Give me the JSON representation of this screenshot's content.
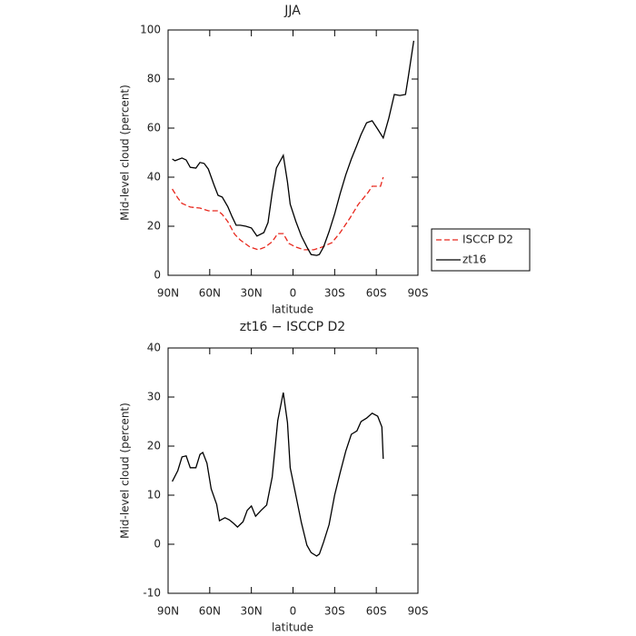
{
  "chart_data": [
    {
      "type": "line",
      "title": "JJA",
      "ylabel": "Mid-level cloud (percent)",
      "xlabel": "latitude",
      "xlim": [
        90,
        -90
      ],
      "ylim": [
        0,
        100
      ],
      "xticks": [
        {
          "value": 90,
          "label": "90N"
        },
        {
          "value": 60,
          "label": "60N"
        },
        {
          "value": 30,
          "label": "30N"
        },
        0,
        {
          "value": -30,
          "label": "30S"
        },
        {
          "value": -60,
          "label": "60S"
        },
        {
          "value": -90,
          "label": "90S"
        }
      ],
      "yticks": [
        0,
        20,
        40,
        60,
        80,
        100
      ],
      "legend": "right",
      "series": [
        {
          "name": "ISCCP D2",
          "color": "#e8271c",
          "linestyle": "dashed",
          "x": [
            87,
            83,
            80,
            74,
            67,
            61,
            54,
            51,
            47,
            42,
            38,
            31,
            25,
            20,
            15,
            11,
            7,
            3,
            -2,
            -8,
            -15,
            -21,
            -28,
            -34,
            -41,
            -47,
            -54,
            -57,
            -63,
            -65
          ],
          "values": [
            35.2,
            31.5,
            29.3,
            27.8,
            27.4,
            26.3,
            26.3,
            24.8,
            21.9,
            16.7,
            14.4,
            11.5,
            10.4,
            11.5,
            13.7,
            17,
            17,
            13,
            11.5,
            10.4,
            10.4,
            11.5,
            13.3,
            17.4,
            23.3,
            28.9,
            33.7,
            36.3,
            36.3,
            40
          ]
        },
        {
          "name": "zt16",
          "color": "#000000",
          "linestyle": "solid",
          "x": [
            87,
            85,
            80,
            77,
            74,
            70,
            67,
            64,
            61,
            57,
            54,
            51,
            47,
            44,
            41,
            38,
            34,
            30,
            26,
            21,
            18,
            15,
            12,
            7,
            4,
            2,
            -2,
            -6,
            -10,
            -13,
            -17,
            -19,
            -22,
            -26,
            -30,
            -34,
            -38,
            -42,
            -46,
            -49,
            -53,
            -57,
            -61,
            -65,
            -69,
            -73,
            -77,
            -81,
            -83,
            -87
          ],
          "values": [
            47.4,
            46.7,
            47.8,
            47,
            44,
            43.7,
            46,
            45.6,
            43.3,
            37,
            32.6,
            31.9,
            28,
            24,
            20.4,
            20.4,
            20,
            19.3,
            16,
            17.4,
            21.5,
            33.7,
            43.7,
            48.9,
            38,
            29,
            22,
            16,
            11.5,
            8.5,
            8.1,
            8.5,
            11.5,
            17.8,
            25,
            33.3,
            41,
            47.4,
            53,
            57.4,
            62.2,
            63,
            59.6,
            56,
            64,
            73.7,
            73.3,
            73.7,
            80.7,
            95.6
          ]
        }
      ]
    },
    {
      "type": "line",
      "title": "zt16 − ISCCP D2",
      "ylabel": "Mid-level cloud (percent)",
      "xlabel": "latitude",
      "xlim": [
        90,
        -90
      ],
      "ylim": [
        -10,
        40
      ],
      "xticks": [
        {
          "value": 90,
          "label": "90N"
        },
        {
          "value": 60,
          "label": "60N"
        },
        {
          "value": 30,
          "label": "30N"
        },
        0,
        {
          "value": -30,
          "label": "30S"
        },
        {
          "value": -60,
          "label": "60S"
        },
        {
          "value": -90,
          "label": "90S"
        }
      ],
      "yticks": [
        -10,
        0,
        10,
        20,
        30,
        40
      ],
      "series": [
        {
          "color": "#000000",
          "linestyle": "solid",
          "x": [
            87,
            83,
            80,
            77,
            74,
            70,
            67,
            65,
            62,
            59,
            55,
            53,
            49,
            46,
            43,
            40,
            36,
            33,
            30,
            27,
            23,
            19,
            15,
            11,
            7,
            4,
            2,
            -2,
            -6,
            -10,
            -13,
            -17,
            -19,
            -22,
            -26,
            -30,
            -34,
            -38,
            -42,
            -46,
            -49,
            -53,
            -57,
            -61,
            -64,
            -65
          ],
          "values": [
            12.8,
            15,
            17.8,
            18,
            15.6,
            15.6,
            18.3,
            18.7,
            16.5,
            11.3,
            8.1,
            4.8,
            5.4,
            5,
            4.3,
            3.5,
            4.6,
            6.9,
            7.8,
            5.7,
            6.9,
            8,
            13.7,
            25.2,
            30.9,
            24.8,
            15.6,
            10,
            4.4,
            -0.2,
            -1.7,
            -2.4,
            -2,
            0.4,
            4,
            10,
            14.6,
            19,
            22.4,
            23.1,
            25,
            25.7,
            26.7,
            26.1,
            23.9,
            17.4
          ]
        }
      ]
    }
  ]
}
